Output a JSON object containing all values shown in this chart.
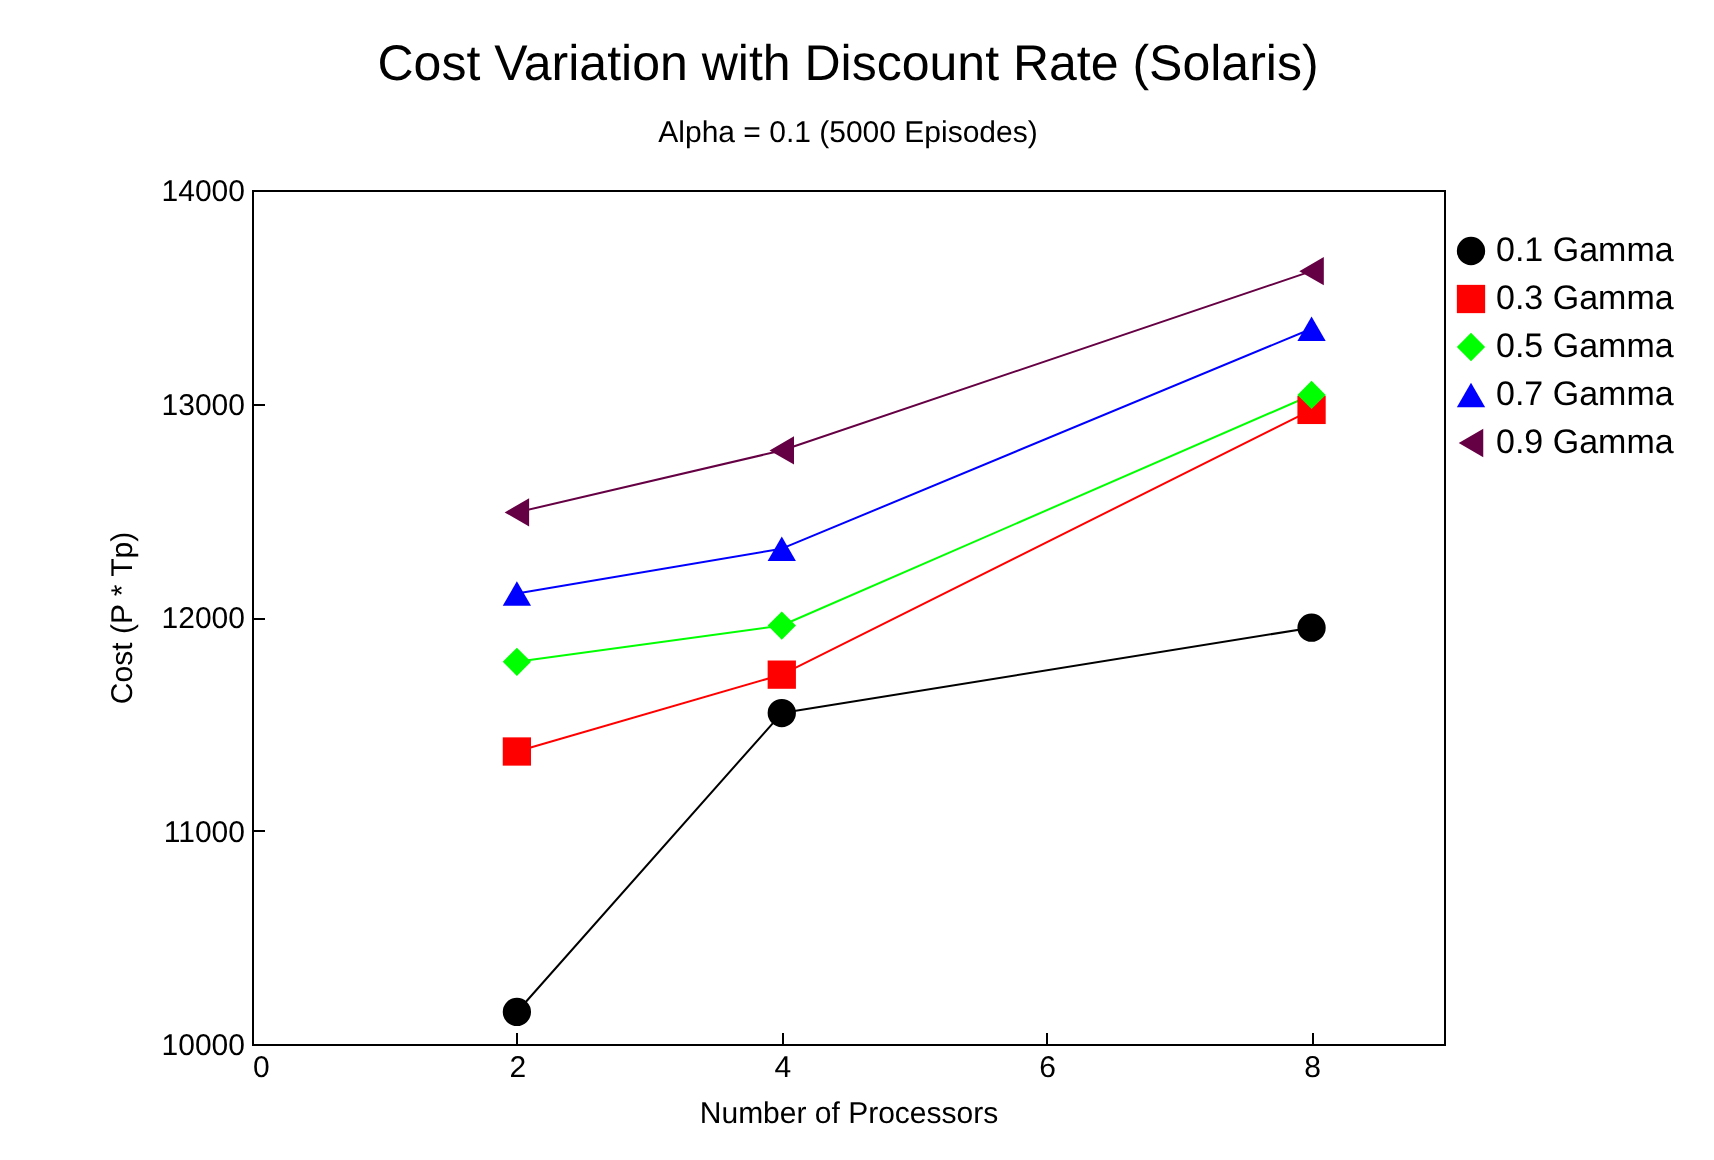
{
  "chart_data": {
    "type": "line",
    "title": "Cost Variation with Discount Rate (Solaris)",
    "subtitle": "Alpha = 0.1 (5000 Episodes)",
    "xlabel": "Number of Processors",
    "ylabel": "Cost (P * Tp)",
    "x": [
      2,
      4,
      8
    ],
    "series": [
      {
        "name": "0.1 Gamma",
        "color": "#000000",
        "marker": "circle",
        "values": [
          10150,
          11550,
          11950
        ]
      },
      {
        "name": "0.3 Gamma",
        "color": "#ff0000",
        "marker": "square",
        "values": [
          11370,
          11730,
          12970
        ]
      },
      {
        "name": "0.5 Gamma",
        "color": "#00ff00",
        "marker": "diamond",
        "values": [
          11790,
          11960,
          13040
        ]
      },
      {
        "name": "0.7 Gamma",
        "color": "#0000ff",
        "marker": "triangle",
        "values": [
          12110,
          12320,
          13350
        ]
      },
      {
        "name": "0.9 Gamma",
        "color": "#660044",
        "marker": "triangle-left",
        "values": [
          12490,
          12780,
          13620
        ]
      }
    ],
    "xlim": [
      0,
      9
    ],
    "xticks": [
      0,
      2,
      4,
      6,
      8
    ],
    "ylim": [
      10000,
      14000
    ],
    "yticks": [
      10000,
      11000,
      12000,
      13000,
      14000
    ],
    "grid": false,
    "legend": "top right",
    "line_style": "solid"
  }
}
